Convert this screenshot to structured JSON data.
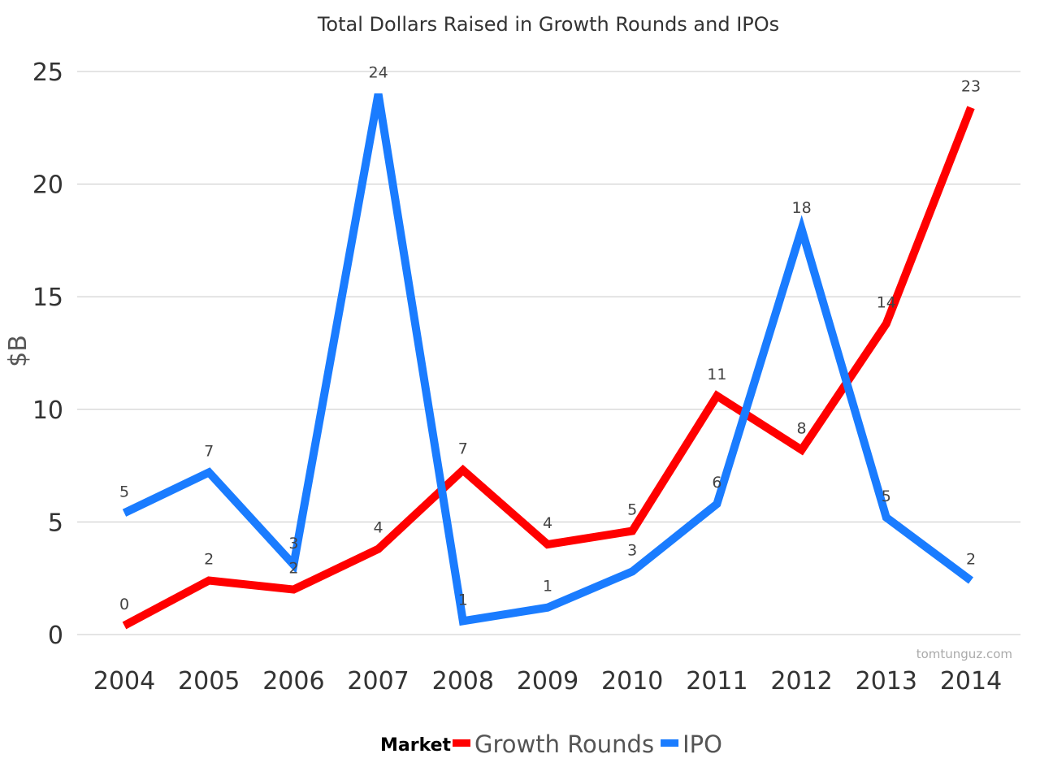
{
  "chart_data": {
    "type": "line",
    "title": "Total Dollars Raised in Growth Rounds and IPOs",
    "ylabel": "$B",
    "xlabel": "",
    "ylim": [
      0,
      25
    ],
    "yticks": [
      "0",
      "5",
      "10",
      "15",
      "20",
      "25"
    ],
    "grid": true,
    "legend_title": "Market",
    "legend_position": "bottom",
    "categories": [
      "2004",
      "2005",
      "2006",
      "2007",
      "2008",
      "2009",
      "2010",
      "2011",
      "2012",
      "2013",
      "2014"
    ],
    "series": [
      {
        "name": "Growth Rounds",
        "color": "#ff0000",
        "values": [
          0.4,
          2.4,
          2.0,
          3.8,
          7.3,
          4.0,
          4.6,
          10.6,
          8.2,
          13.8,
          23.4
        ],
        "labels": [
          "0",
          "2",
          "2",
          "4",
          "7",
          "4",
          "5",
          "11",
          "8",
          "14",
          "23"
        ]
      },
      {
        "name": "IPO",
        "color": "#1a7cff",
        "values": [
          5.4,
          7.2,
          3.1,
          24.0,
          0.6,
          1.2,
          2.8,
          5.8,
          18.0,
          5.2,
          2.4
        ],
        "labels": [
          "5",
          "7",
          "3",
          "24",
          "1",
          "1",
          "3",
          "6",
          "18",
          "5",
          "2"
        ]
      }
    ],
    "credit": "tomtunguz.com"
  }
}
